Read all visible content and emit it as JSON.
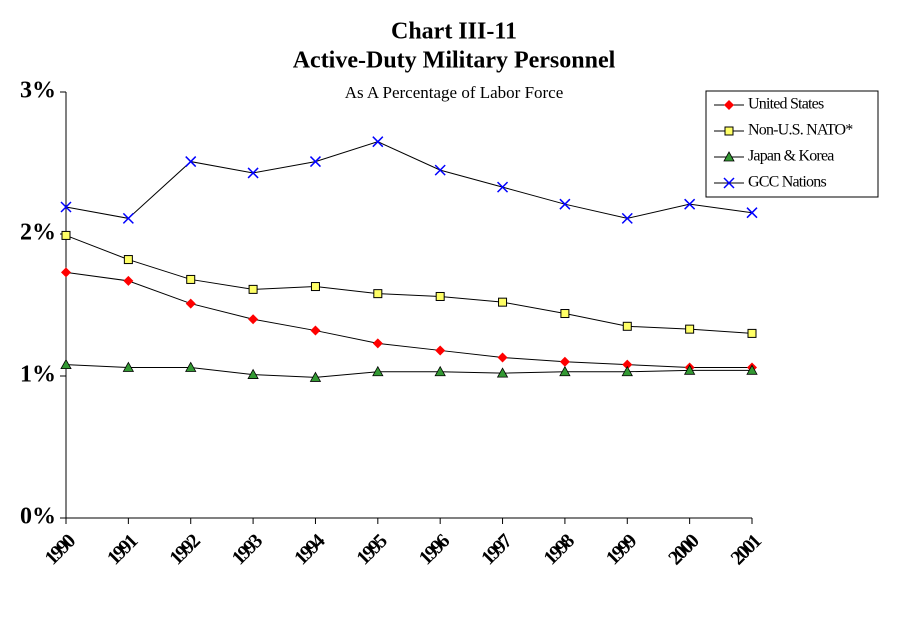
{
  "chart_data": {
    "type": "line",
    "title": "Chart III-11",
    "subtitle": "Active-Duty Military Personnel",
    "caption": "As A Percentage of Labor Force",
    "categories": [
      "1990",
      "1991",
      "1992",
      "1993",
      "1994",
      "1995",
      "1996",
      "1997",
      "1998",
      "1999",
      "2000",
      "2001"
    ],
    "line_color": "#000000",
    "series": [
      {
        "name": "United States",
        "color": "#ff0000",
        "marker": "diamond",
        "values": [
          1.73,
          1.67,
          1.51,
          1.4,
          1.32,
          1.23,
          1.18,
          1.13,
          1.1,
          1.08,
          1.06,
          1.06
        ]
      },
      {
        "name": "Non-U.S. NATO*",
        "color": "#ffff66",
        "marker": "square",
        "values": [
          1.99,
          1.82,
          1.68,
          1.61,
          1.63,
          1.58,
          1.56,
          1.52,
          1.44,
          1.35,
          1.33,
          1.3
        ]
      },
      {
        "name": "Japan & Korea",
        "color": "#339933",
        "marker": "triangle",
        "values": [
          1.08,
          1.06,
          1.06,
          1.01,
          0.99,
          1.03,
          1.03,
          1.02,
          1.03,
          1.03,
          1.04,
          1.04
        ]
      },
      {
        "name": "GCC Nations",
        "color": "#0000ff",
        "marker": "x",
        "values": [
          2.19,
          2.11,
          2.51,
          2.43,
          2.51,
          2.65,
          2.45,
          2.33,
          2.21,
          2.11,
          2.21,
          2.15
        ]
      }
    ],
    "ylim": [
      0,
      3
    ],
    "yticks": [
      {
        "value": 0,
        "label": "0%"
      },
      {
        "value": 1,
        "label": "1%"
      },
      {
        "value": 2,
        "label": "2%"
      },
      {
        "value": 3,
        "label": "3%"
      }
    ],
    "legend": "top-right"
  }
}
